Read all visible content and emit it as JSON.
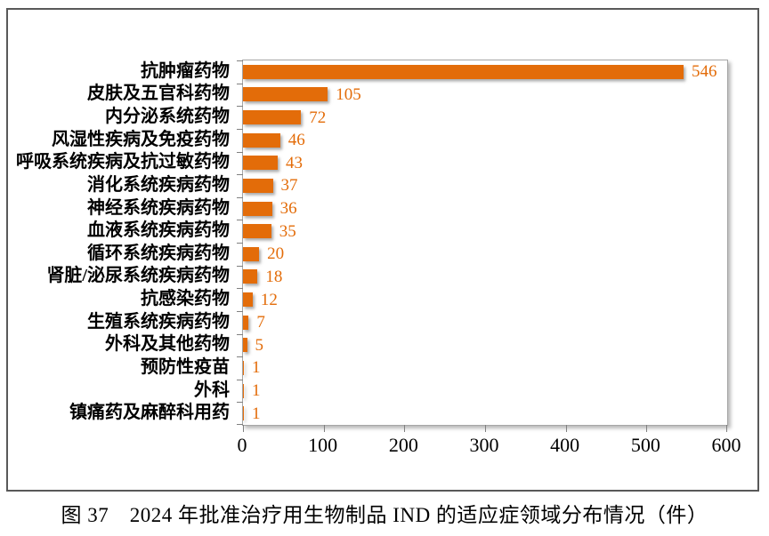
{
  "caption": "图 37　2024 年批准治疗用生物制品 IND 的适应症领域分布情况（件）",
  "colors": {
    "bar": "#E36C09",
    "value_label": "#E36C09",
    "axis": "#A6A6A6",
    "tick": "#808080",
    "figure_border": "#595959"
  },
  "chart_data": {
    "type": "bar",
    "orientation": "horizontal",
    "title": "",
    "xlabel": "",
    "ylabel": "",
    "grid": false,
    "data_labels": true,
    "xlim": [
      0,
      600
    ],
    "x_ticks": [
      "0",
      "100",
      "200",
      "300",
      "400",
      "500",
      "600"
    ],
    "categories": [
      "抗肿瘤药物",
      "皮肤及五官科药物",
      "内分泌系统药物",
      "风湿性疾病及免疫药物",
      "呼吸系统疾病及抗过敏药物",
      "消化系统疾病药物",
      "神经系统疾病药物",
      "血液系统疾病药物",
      "循环系统疾病药物",
      "肾脏/泌尿系统疾病药物",
      "抗感染药物",
      "生殖系统疾病药物",
      "外科及其他药物",
      "预防性疫苗",
      "外科",
      "镇痛药及麻醉科用药"
    ],
    "values": [
      546,
      105,
      72,
      46,
      43,
      37,
      36,
      35,
      20,
      18,
      12,
      7,
      5,
      1,
      1,
      1
    ]
  }
}
